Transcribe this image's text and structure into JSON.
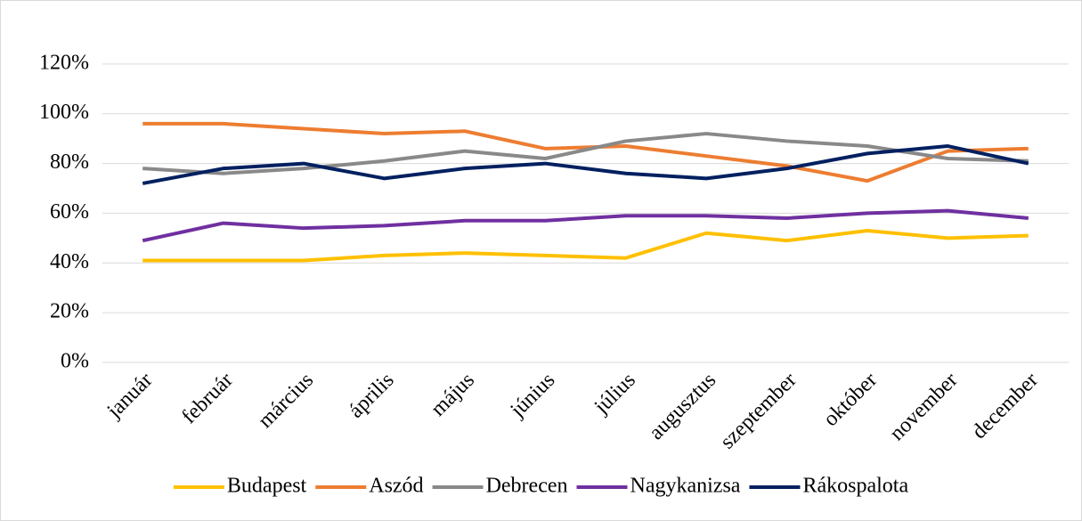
{
  "chart_data": {
    "type": "line",
    "categories": [
      "január",
      "február",
      "március",
      "április",
      "május",
      "június",
      "július",
      "augusztus",
      "szeptember",
      "október",
      "november",
      "december"
    ],
    "series": [
      {
        "name": "Budapest",
        "color": "#ffc000",
        "values": [
          41,
          41,
          41,
          43,
          44,
          43,
          42,
          52,
          49,
          53,
          50,
          51
        ]
      },
      {
        "name": "Aszód",
        "color": "#ed7d31",
        "values": [
          96,
          96,
          94,
          92,
          93,
          86,
          87,
          83,
          79,
          73,
          85,
          86
        ]
      },
      {
        "name": "Debrecen",
        "color": "#898989",
        "values": [
          78,
          76,
          78,
          81,
          85,
          82,
          89,
          92,
          89,
          87,
          82,
          81
        ]
      },
      {
        "name": "Nagykanizsa",
        "color": "#7030a0",
        "values": [
          49,
          56,
          54,
          55,
          57,
          57,
          59,
          59,
          58,
          60,
          61,
          58
        ]
      },
      {
        "name": "Rákospalota",
        "color": "#002060",
        "values": [
          72,
          78,
          80,
          74,
          78,
          80,
          76,
          74,
          78,
          84,
          87,
          80
        ]
      }
    ],
    "ylim": [
      0,
      140
    ],
    "yticks": [
      {
        "value": 0,
        "label": "0%"
      },
      {
        "value": 20,
        "label": "20%"
      },
      {
        "value": 40,
        "label": "40%"
      },
      {
        "value": 60,
        "label": "60%"
      },
      {
        "value": 80,
        "label": "80%"
      },
      {
        "value": 100,
        "label": "100%"
      },
      {
        "value": 120,
        "label": "120%"
      }
    ],
    "grid": true,
    "legend": "bottom"
  }
}
